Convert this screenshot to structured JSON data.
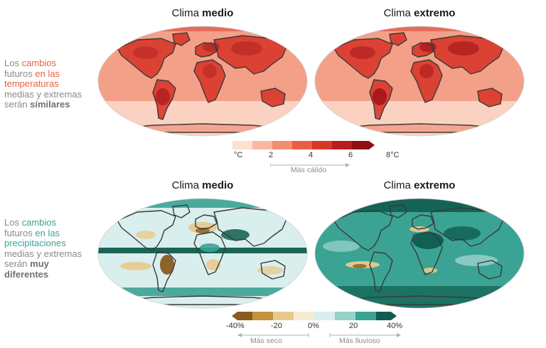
{
  "temperature": {
    "titles": [
      {
        "prefix": "Clima ",
        "bold": "medio"
      },
      {
        "prefix": "Clima ",
        "bold": "extremo"
      }
    ],
    "side_text": {
      "w1": "Los ",
      "w2": "cambios",
      "w3": "futuros ",
      "w4": "en las",
      "w5": "temperaturas",
      "w6": "medias y extremas",
      "w7": "serán ",
      "w8": "símilares"
    },
    "accent_color": "#e8623f",
    "legend": {
      "tick_labels": [
        "°C",
        "2",
        "4",
        "6",
        "8°C"
      ],
      "colors": [
        "#fde0d0",
        "#f8b9a0",
        "#f28e6f",
        "#e95e45",
        "#d83727",
        "#b71d1e",
        "#8e0e14"
      ],
      "note": "Más cálido"
    }
  },
  "precipitation": {
    "titles": [
      {
        "prefix": "Clima ",
        "bold": "medio"
      },
      {
        "prefix": "Clima ",
        "bold": "extremo"
      }
    ],
    "side_text": {
      "w1": "Los ",
      "w2": "cambios",
      "w3": "futuros ",
      "w4": "en las",
      "w5": "precipitaciones",
      "w6": "medias y extremas",
      "w7": "serán ",
      "w8": "muy",
      "w9": "diferentes"
    },
    "accent_color": "#3aa394",
    "legend": {
      "tick_labels": [
        "-40%",
        "-20",
        "0%",
        "20",
        "40%"
      ],
      "colors": [
        "#8a5a1e",
        "#c4913c",
        "#e7c98e",
        "#f6ecd3",
        "#d9efed",
        "#95d3c9",
        "#3aa394",
        "#0f5d4f"
      ],
      "note_left": "Más seco",
      "note_right": "Más lluvioso"
    }
  },
  "map_colors": {
    "coast": "#3a3a3a",
    "temp_base": "#f4a088",
    "temp_hot": "#d8372a",
    "temp_very_hot": "#a81a1c",
    "temp_cool": "#fcdacb",
    "prec_base": "#d9efed",
    "prec_wet": "#3aa394",
    "prec_very_wet": "#0f5d4f",
    "prec_dry": "#e7c98e",
    "prec_very_dry": "#8a5a1e"
  }
}
